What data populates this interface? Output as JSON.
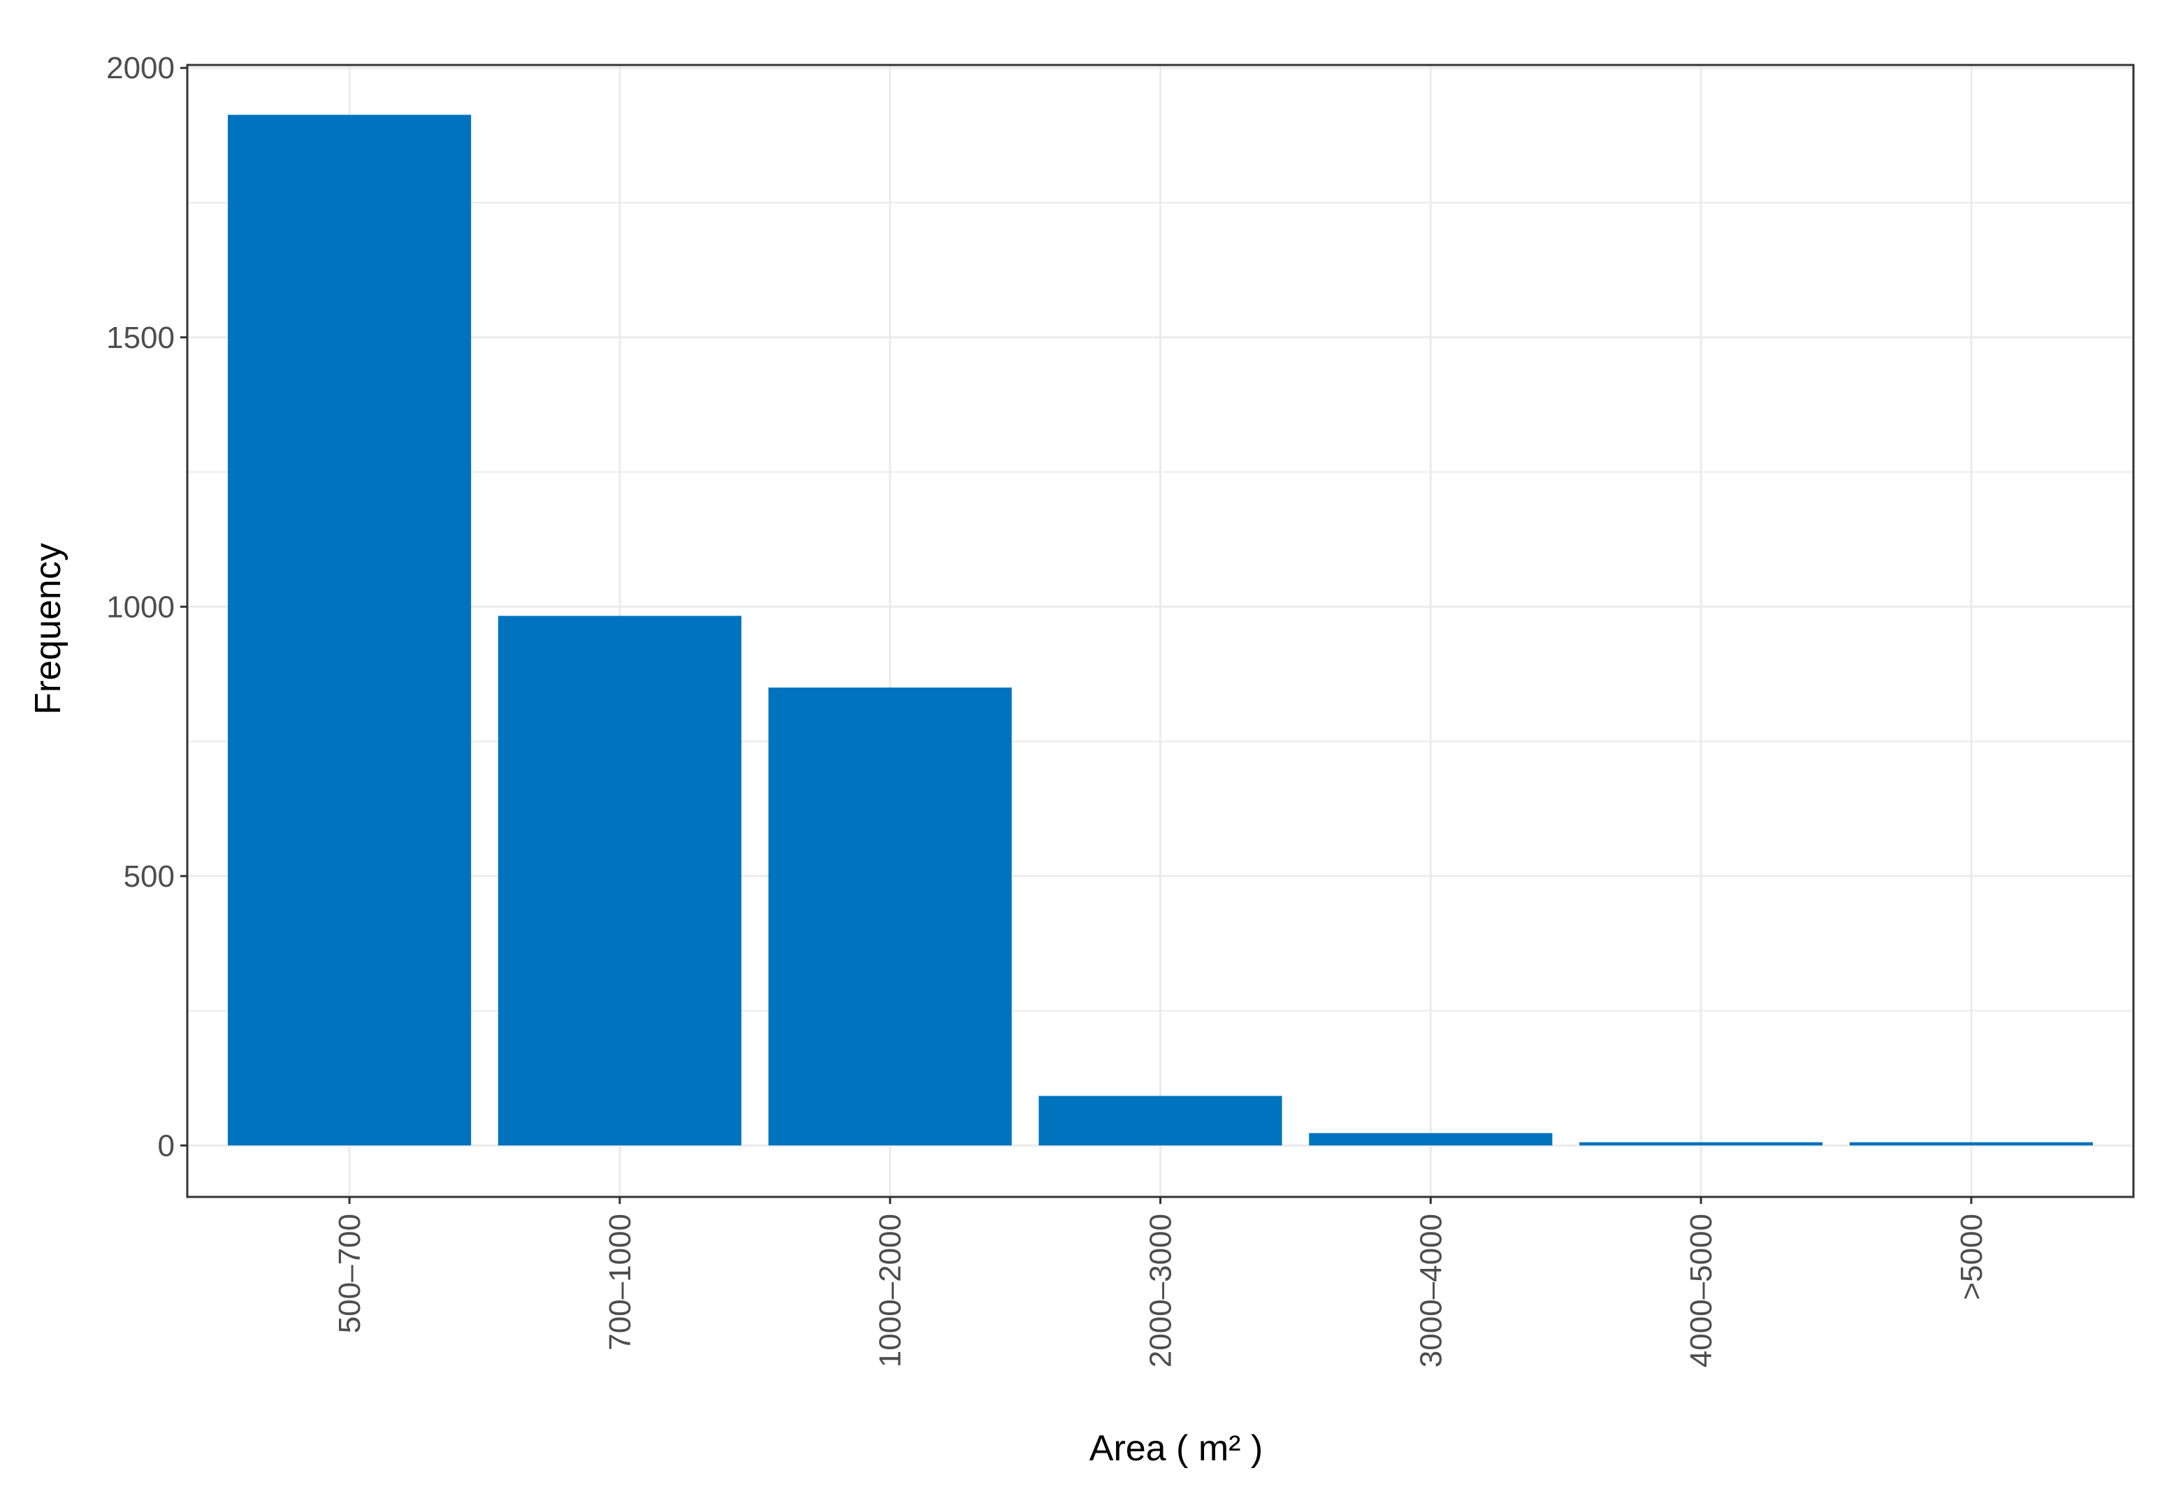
{
  "chart_data": {
    "type": "bar",
    "x_label": "Area ( m² )",
    "y_label": "Frequency",
    "categories": [
      "500–700",
      "700–1000",
      "1000–2000",
      "2000–3000",
      "3000–4000",
      "4000–5000",
      ">5000"
    ],
    "values": [
      1913,
      983,
      850,
      92,
      23,
      6,
      6
    ],
    "color": "#0073bf",
    "ylim": [
      -95.5,
      2005.5
    ],
    "yticks": [
      0,
      500,
      1000,
      1500,
      2000
    ],
    "minor_yticks": [
      250,
      750,
      1250,
      1750
    ],
    "grid": true
  }
}
